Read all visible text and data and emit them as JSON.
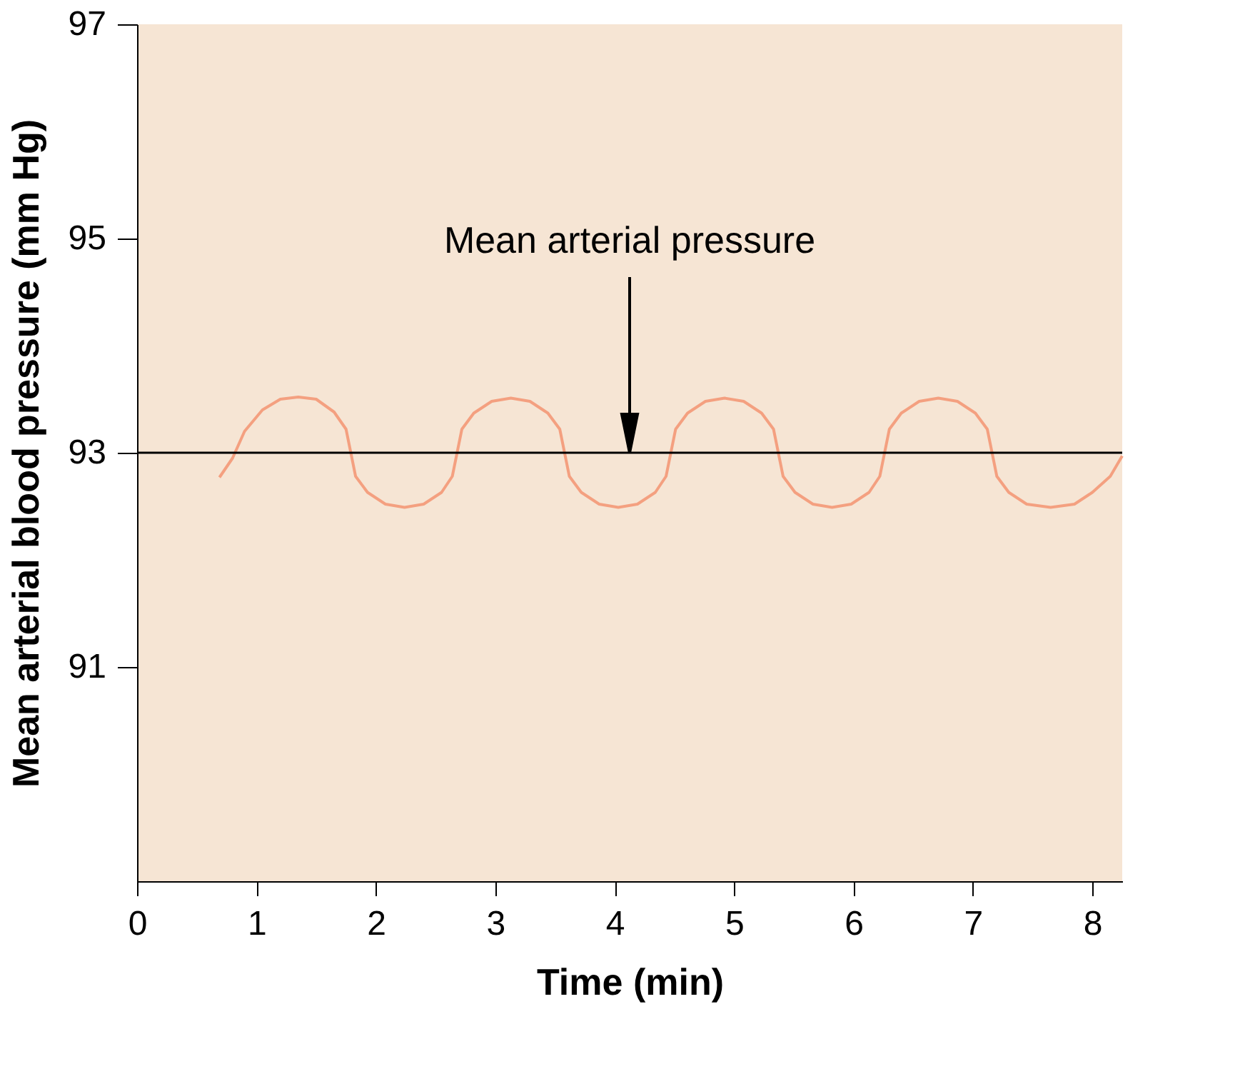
{
  "chart_data": {
    "type": "line",
    "xlabel": "Time (min)",
    "ylabel": "Mean arterial blood pressure (mm Hg)",
    "xlim": [
      0,
      8.25
    ],
    "ylim": [
      89,
      97
    ],
    "xticks": [
      0,
      1,
      2,
      3,
      4,
      5,
      6,
      7,
      8
    ],
    "yticks": [
      91,
      93,
      95,
      97
    ],
    "grid": false,
    "series": [
      {
        "color": "#f4a080",
        "x": [
          0.69,
          0.8,
          0.9,
          1.05,
          1.2,
          1.35,
          1.5,
          1.65,
          1.75,
          1.79,
          1.83,
          1.93,
          2.08,
          2.24,
          2.4,
          2.55,
          2.64,
          2.68,
          2.72,
          2.82,
          2.97,
          3.13,
          3.29,
          3.44,
          3.54,
          3.58,
          3.62,
          3.72,
          3.87,
          4.03,
          4.19,
          4.34,
          4.43,
          4.47,
          4.51,
          4.61,
          4.76,
          4.92,
          5.08,
          5.23,
          5.33,
          5.37,
          5.41,
          5.51,
          5.66,
          5.82,
          5.98,
          6.13,
          6.22,
          6.26,
          6.3,
          6.4,
          6.55,
          6.71,
          6.87,
          7.02,
          7.12,
          7.16,
          7.2,
          7.3,
          7.45,
          7.65,
          7.85,
          8.0,
          8.15,
          8.25
        ],
        "values": [
          92.77,
          92.95,
          93.2,
          93.4,
          93.5,
          93.52,
          93.5,
          93.38,
          93.22,
          93.0,
          92.78,
          92.63,
          92.52,
          92.49,
          92.52,
          92.63,
          92.78,
          93.0,
          93.22,
          93.37,
          93.48,
          93.51,
          93.48,
          93.37,
          93.22,
          93.0,
          92.78,
          92.63,
          92.52,
          92.49,
          92.52,
          92.63,
          92.78,
          93.0,
          93.22,
          93.37,
          93.48,
          93.51,
          93.48,
          93.37,
          93.22,
          93.0,
          92.78,
          92.63,
          92.52,
          92.49,
          92.52,
          92.63,
          92.78,
          93.0,
          93.22,
          93.37,
          93.48,
          93.51,
          93.48,
          93.37,
          93.22,
          93.0,
          92.78,
          92.63,
          92.52,
          92.49,
          92.52,
          92.63,
          92.78,
          92.97
        ]
      }
    ],
    "ref_lines": [
      {
        "axis": "y",
        "value": 93,
        "color": "#000000"
      }
    ],
    "annotations": [
      "Mean arterial pressure"
    ]
  }
}
